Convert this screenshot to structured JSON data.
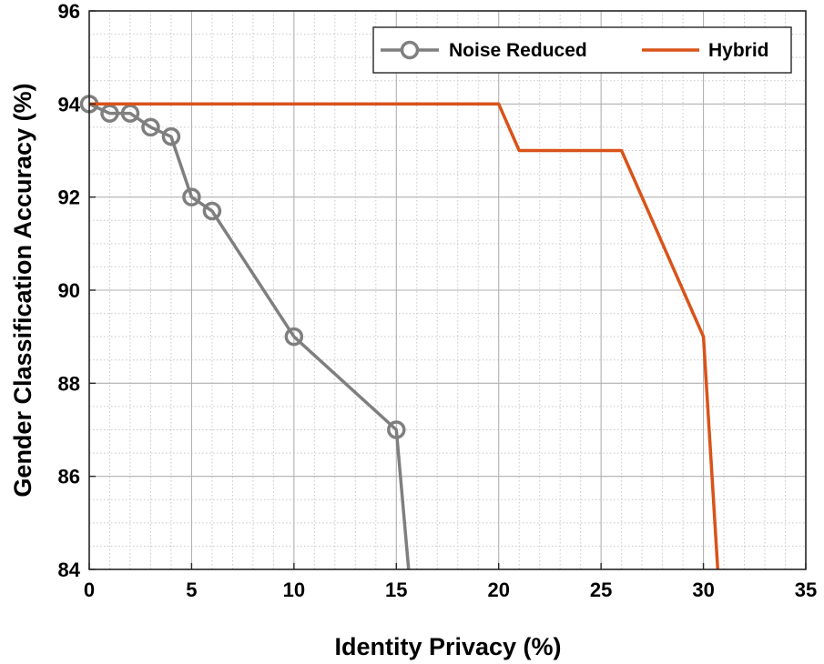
{
  "chart_data": {
    "type": "line",
    "title": "",
    "xlabel": "Identity Privacy (%)",
    "ylabel": "Gender Classification Accuracy (%)",
    "xlim": [
      0,
      35
    ],
    "ylim": [
      84,
      96
    ],
    "xticks": [
      "0",
      "5",
      "10",
      "15",
      "20",
      "25",
      "30",
      "35"
    ],
    "yticks": [
      "84",
      "86",
      "88",
      "90",
      "92",
      "94",
      "96"
    ],
    "grid": true,
    "minor_grid": true,
    "legend_position": "top-right",
    "series": [
      {
        "name": "Noise Reduced",
        "color": "#7f7f7f",
        "marker": "circle",
        "x": [
          0,
          1,
          2,
          3,
          4,
          5,
          6,
          10,
          15,
          15.6
        ],
        "y": [
          94,
          93.8,
          93.8,
          93.5,
          93.3,
          92,
          91.7,
          89,
          87,
          84
        ],
        "marker_count": 9
      },
      {
        "name": "Hybrid",
        "color": "#d95319",
        "marker": "none",
        "x": [
          0,
          20,
          21,
          26,
          30,
          30.7
        ],
        "y": [
          94,
          94,
          93,
          93,
          89,
          84
        ]
      }
    ]
  }
}
